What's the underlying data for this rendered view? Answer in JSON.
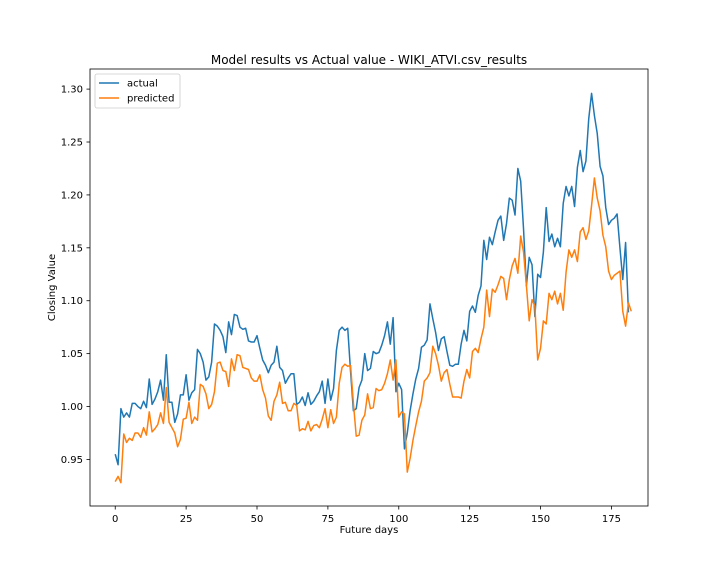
{
  "chart_data": {
    "type": "line",
    "title": "Model results vs Actual value - WIKI_ATVI.csv_results",
    "xlabel": "Future days",
    "ylabel": "Closing Value",
    "xlim": [
      -8.9,
      187.9
    ],
    "ylim": [
      0.906,
      1.319
    ],
    "xticks": [
      0,
      25,
      50,
      75,
      100,
      125,
      150,
      175
    ],
    "yticks": [
      0.95,
      1.0,
      1.05,
      1.1,
      1.15,
      1.2,
      1.25,
      1.3
    ],
    "grid": false,
    "legend_position": "upper-left",
    "series": [
      {
        "name": "actual",
        "color": "#1f77b4",
        "values": [
          0.955,
          0.945,
          0.998,
          0.99,
          0.994,
          0.99,
          1.003,
          1.003,
          1.0,
          0.998,
          1.005,
          0.999,
          1.026,
          1.002,
          1.007,
          1.014,
          1.025,
          1.006,
          1.049,
          1.004,
          1.004,
          0.985,
          0.993,
          1.011,
          1.011,
          1.03,
          1.006,
          1.013,
          1.016,
          1.054,
          1.05,
          1.042,
          1.025,
          1.028,
          1.042,
          1.078,
          1.076,
          1.072,
          1.066,
          1.051,
          1.08,
          1.068,
          1.087,
          1.086,
          1.075,
          1.073,
          1.074,
          1.062,
          1.061,
          1.061,
          1.067,
          1.055,
          1.044,
          1.039,
          1.032,
          1.039,
          1.042,
          1.057,
          1.037,
          1.034,
          1.022,
          1.027,
          1.031,
          1.031,
          1.002,
          1.004,
          1.009,
          1.001,
          1.013,
          1.002,
          1.005,
          1.01,
          1.014,
          1.024,
          1.003,
          1.026,
          1.006,
          1.017,
          1.053,
          1.072,
          1.075,
          1.072,
          1.074,
          1.033,
          0.996,
          0.998,
          1.018,
          1.025,
          1.05,
          1.034,
          1.036,
          1.052,
          1.05,
          1.051,
          1.058,
          1.067,
          1.08,
          1.059,
          1.084,
          1.014,
          1.022,
          1.016,
          0.96,
          0.975,
          0.996,
          1.012,
          1.026,
          1.036,
          1.056,
          1.058,
          1.063,
          1.097,
          1.083,
          1.07,
          1.053,
          1.064,
          1.066,
          1.052,
          1.039,
          1.038,
          1.04,
          1.04,
          1.059,
          1.072,
          1.062,
          1.09,
          1.095,
          1.089,
          1.105,
          1.114,
          1.157,
          1.139,
          1.16,
          1.153,
          1.165,
          1.176,
          1.18,
          1.157,
          1.173,
          1.197,
          1.195,
          1.181,
          1.225,
          1.213,
          1.168,
          1.114,
          1.141,
          1.134,
          1.085,
          1.125,
          1.122,
          1.146,
          1.188,
          1.156,
          1.163,
          1.151,
          1.159,
          1.151,
          1.192,
          1.208,
          1.199,
          1.208,
          1.189,
          1.226,
          1.242,
          1.222,
          1.232,
          1.272,
          1.296,
          1.275,
          1.258,
          1.227,
          1.218,
          1.188,
          1.172,
          1.176,
          1.178,
          1.182,
          1.15,
          1.12,
          1.155,
          1.089
        ]
      },
      {
        "name": "predicted",
        "color": "#ff7f0e",
        "values": [
          0.929,
          0.934,
          0.928,
          0.974,
          0.966,
          0.97,
          0.968,
          0.975,
          0.975,
          0.971,
          0.98,
          0.973,
          0.995,
          0.976,
          0.979,
          0.983,
          0.994,
          0.984,
          1.018,
          0.985,
          0.98,
          0.975,
          0.962,
          0.969,
          0.988,
          0.989,
          1.004,
          0.984,
          0.99,
          0.987,
          1.021,
          1.019,
          1.012,
          0.998,
          1.002,
          1.014,
          1.041,
          1.042,
          1.034,
          1.033,
          1.019,
          1.045,
          1.034,
          1.049,
          1.048,
          1.037,
          1.036,
          1.035,
          1.027,
          1.024,
          1.024,
          1.03,
          1.016,
          1.008,
          0.991,
          0.987,
          1.005,
          1.011,
          1.023,
          1.003,
          1.004,
          0.996,
          0.996,
          1.003,
          1.001,
          0.977,
          0.979,
          0.978,
          0.986,
          0.977,
          0.982,
          0.983,
          0.98,
          0.988,
          0.998,
          0.98,
          0.997,
          0.984,
          0.99,
          1.022,
          1.037,
          1.04,
          1.038,
          1.039,
          1.003,
          0.972,
          0.973,
          0.987,
          0.992,
          1.012,
          0.998,
          0.999,
          1.017,
          1.015,
          1.016,
          1.022,
          1.031,
          1.044,
          1.025,
          1.044,
          0.99,
          0.995,
          0.993,
          0.938,
          0.951,
          0.968,
          0.982,
          0.995,
          1.005,
          1.024,
          1.027,
          1.032,
          1.057,
          1.05,
          1.039,
          1.024,
          1.032,
          1.035,
          1.021,
          1.009,
          1.009,
          1.009,
          1.008,
          1.024,
          1.035,
          1.027,
          1.052,
          1.055,
          1.051,
          1.064,
          1.075,
          1.11,
          1.085,
          1.111,
          1.108,
          1.115,
          1.123,
          1.121,
          1.101,
          1.12,
          1.133,
          1.14,
          1.126,
          1.161,
          1.146,
          1.115,
          1.081,
          1.101,
          1.095,
          1.044,
          1.055,
          1.081,
          1.078,
          1.107,
          1.101,
          1.109,
          1.097,
          1.107,
          1.091,
          1.127,
          1.148,
          1.141,
          1.148,
          1.137,
          1.165,
          1.169,
          1.158,
          1.166,
          1.19,
          1.216,
          1.197,
          1.185,
          1.162,
          1.151,
          1.128,
          1.12,
          1.124,
          1.126,
          1.128,
          1.09,
          1.076,
          1.098,
          1.09
        ]
      }
    ]
  }
}
